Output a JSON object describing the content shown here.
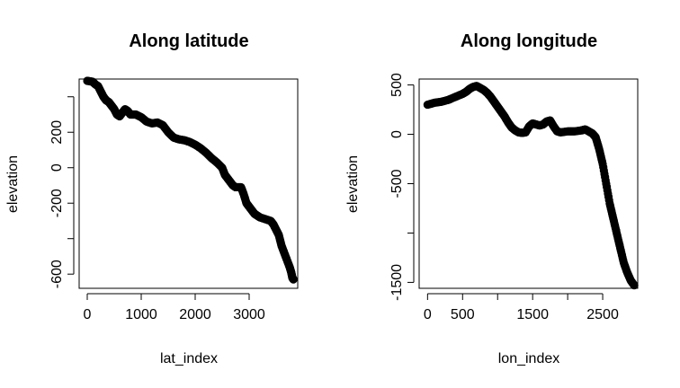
{
  "chart_data": [
    {
      "type": "scatter",
      "title": "Along latitude",
      "xlabel": "lat_index",
      "ylabel": "elevation",
      "xlim": [
        -150,
        3900
      ],
      "ylim": [
        -680,
        500
      ],
      "x_ticks": [
        0,
        1000,
        2000,
        3000
      ],
      "x_tick_labels": [
        "0",
        "1000",
        "2000",
        "3000"
      ],
      "y_ticks": [
        -600,
        -400,
        -200,
        0,
        200,
        400
      ],
      "y_tick_labels": [
        "-600",
        "",
        "-200",
        "0",
        "200",
        ""
      ],
      "grid": false,
      "point_color": "#000000",
      "series": [
        {
          "x": [
            0,
            100,
            150,
            200,
            250,
            300,
            350,
            400,
            450,
            500,
            550,
            600,
            650,
            700,
            750,
            800,
            900,
            1000,
            1100,
            1200,
            1300,
            1400,
            1500,
            1600,
            1700,
            1800,
            1900,
            2000,
            2100,
            2200,
            2300,
            2400,
            2500,
            2550,
            2600,
            2650,
            2700,
            2750,
            2800,
            2850,
            2900,
            2950,
            3000,
            3050,
            3100,
            3150,
            3200,
            3300,
            3400,
            3450,
            3500,
            3550,
            3600,
            3650,
            3700,
            3750,
            3780,
            3800,
            3820
          ],
          "y": [
            490,
            485,
            470,
            460,
            430,
            400,
            380,
            370,
            350,
            330,
            300,
            290,
            310,
            330,
            320,
            300,
            300,
            285,
            260,
            250,
            255,
            240,
            200,
            170,
            160,
            155,
            145,
            130,
            110,
            85,
            55,
            30,
            0,
            -40,
            -60,
            -80,
            -100,
            -110,
            -110,
            -110,
            -150,
            -200,
            -220,
            -240,
            -260,
            -270,
            -280,
            -290,
            -300,
            -320,
            -350,
            -380,
            -440,
            -480,
            -520,
            -560,
            -590,
            -620,
            -630
          ]
        }
      ]
    },
    {
      "type": "scatter",
      "title": "Along longitude",
      "xlabel": "lon_index",
      "ylabel": "elevation",
      "xlim": [
        -120,
        3000
      ],
      "ylim": [
        -1560,
        560
      ],
      "x_ticks": [
        0,
        500,
        1000,
        1500,
        2000,
        2500
      ],
      "x_tick_labels": [
        "0",
        "500",
        "",
        "1500",
        "",
        "2500"
      ],
      "y_ticks": [
        -1500,
        -1000,
        -500,
        0,
        500
      ],
      "y_tick_labels": [
        "-1500",
        "",
        "-500",
        "0",
        "500"
      ],
      "grid": false,
      "point_color": "#000000",
      "series": [
        {
          "x": [
            0,
            100,
            200,
            300,
            400,
            500,
            550,
            600,
            650,
            700,
            750,
            800,
            850,
            900,
            950,
            1000,
            1050,
            1100,
            1150,
            1200,
            1250,
            1300,
            1350,
            1400,
            1450,
            1500,
            1550,
            1600,
            1650,
            1700,
            1750,
            1800,
            1850,
            1900,
            2000,
            2100,
            2200,
            2250,
            2300,
            2350,
            2400,
            2450,
            2500,
            2550,
            2600,
            2650,
            2700,
            2750,
            2800,
            2850,
            2900,
            2950
          ],
          "y": [
            300,
            320,
            330,
            350,
            380,
            410,
            430,
            460,
            480,
            490,
            470,
            450,
            420,
            380,
            330,
            280,
            230,
            180,
            120,
            70,
            40,
            20,
            15,
            20,
            80,
            110,
            100,
            90,
            100,
            130,
            140,
            80,
            30,
            20,
            30,
            30,
            40,
            50,
            30,
            10,
            -30,
            -150,
            -300,
            -500,
            -700,
            -850,
            -1000,
            -1150,
            -1300,
            -1400,
            -1480,
            -1530
          ]
        }
      ]
    }
  ]
}
